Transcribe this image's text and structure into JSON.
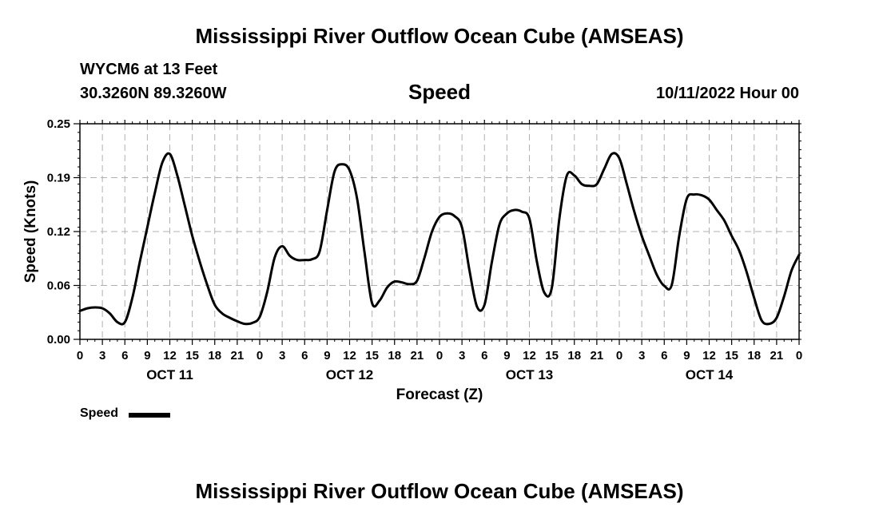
{
  "titles": {
    "main": "Mississippi River Outflow Ocean Cube (AMSEAS)",
    "bottom": "Mississippi River Outflow Ocean Cube (AMSEAS)",
    "station": "WYCM6 at 13 Feet",
    "coords": "30.3260N  89.3260W",
    "variable": "Speed",
    "datetime": "10/11/2022 Hour 00"
  },
  "legend": {
    "label": "Speed",
    "color": "#000000"
  },
  "chart_data": {
    "type": "line",
    "title": "Speed",
    "xlabel": "Forecast (Z)",
    "ylabel": "Speed (Knots)",
    "xlim": [
      0,
      96
    ],
    "ylim": [
      0,
      0.25
    ],
    "yticks": [
      "0.00",
      "0.06",
      "0.12",
      "0.19",
      "0.25"
    ],
    "xtick_labels": [
      "0",
      "3",
      "6",
      "9",
      "12",
      "15",
      "18",
      "21",
      "0",
      "3",
      "6",
      "9",
      "12",
      "15",
      "18",
      "21",
      "0",
      "3",
      "6",
      "9",
      "12",
      "15",
      "18",
      "21",
      "0",
      "3",
      "6",
      "9",
      "12",
      "15",
      "18",
      "21",
      "0"
    ],
    "day_labels": [
      {
        "label": "OCT 11",
        "hour": 12
      },
      {
        "label": "OCT 12",
        "hour": 36
      },
      {
        "label": "OCT 13",
        "hour": 60
      },
      {
        "label": "OCT 14",
        "hour": 84
      }
    ],
    "grid": true,
    "series": [
      {
        "name": "Speed",
        "color": "#000000",
        "x": [
          0,
          1,
          2,
          3,
          4,
          5,
          6,
          7,
          8,
          9,
          10,
          11,
          12,
          13,
          14,
          15,
          16,
          17,
          18,
          19,
          20,
          21,
          22,
          23,
          24,
          25,
          26,
          27,
          28,
          29,
          30,
          31,
          32,
          33,
          34,
          35,
          36,
          37,
          38,
          39,
          40,
          41,
          42,
          43,
          44,
          45,
          46,
          47,
          48,
          49,
          50,
          51,
          52,
          53,
          54,
          55,
          56,
          57,
          58,
          59,
          60,
          61,
          62,
          63,
          64,
          65,
          66,
          67,
          68,
          69,
          70,
          71,
          72,
          73,
          74,
          75,
          76,
          77,
          78,
          79,
          80,
          81,
          82,
          83,
          84,
          85,
          86,
          87,
          88,
          89,
          90,
          91,
          92,
          93,
          94,
          95,
          96
        ],
        "values": [
          0.033,
          0.036,
          0.037,
          0.036,
          0.03,
          0.02,
          0.02,
          0.048,
          0.09,
          0.13,
          0.17,
          0.205,
          0.215,
          0.19,
          0.155,
          0.12,
          0.09,
          0.063,
          0.04,
          0.03,
          0.025,
          0.021,
          0.018,
          0.019,
          0.026,
          0.055,
          0.095,
          0.108,
          0.097,
          0.092,
          0.092,
          0.093,
          0.102,
          0.15,
          0.195,
          0.203,
          0.196,
          0.163,
          0.1,
          0.042,
          0.045,
          0.06,
          0.067,
          0.066,
          0.064,
          0.068,
          0.095,
          0.125,
          0.142,
          0.146,
          0.143,
          0.13,
          0.08,
          0.038,
          0.04,
          0.09,
          0.133,
          0.146,
          0.15,
          0.148,
          0.14,
          0.09,
          0.054,
          0.06,
          0.14,
          0.19,
          0.19,
          0.18,
          0.178,
          0.18,
          0.198,
          0.215,
          0.21,
          0.18,
          0.148,
          0.12,
          0.097,
          0.075,
          0.062,
          0.063,
          0.12,
          0.163,
          0.168,
          0.167,
          0.162,
          0.15,
          0.138,
          0.12,
          0.103,
          0.078,
          0.048,
          0.022,
          0.018,
          0.025,
          0.05,
          0.08,
          0.098
        ]
      }
    ]
  }
}
